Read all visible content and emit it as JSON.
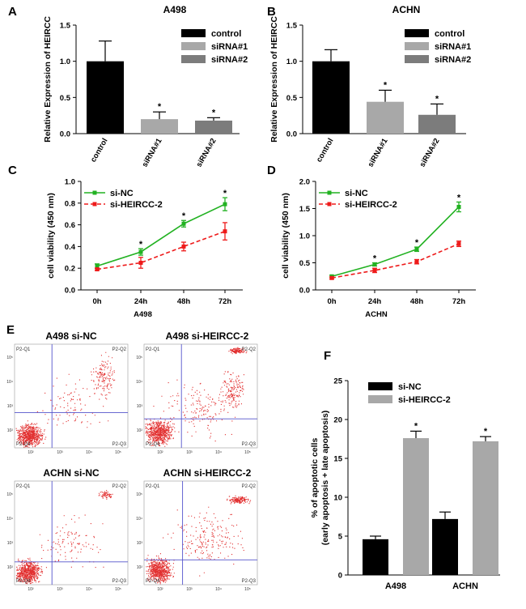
{
  "panel_labels": {
    "A": "A",
    "B": "B",
    "C": "C",
    "D": "D",
    "E": "E",
    "F": "F"
  },
  "colors": {
    "control": "#000000",
    "sirna1": "#a8a8a8",
    "sirna2": "#7c7c7c",
    "si_nc_line": "#22b222",
    "si_heircc_line": "#ee1b1b",
    "gate_line": "#5555cc",
    "dots": "#e23030",
    "bar_nc": "#000000",
    "bar_heircc": "#a8a8a8"
  },
  "chart_data": [
    {
      "id": "A",
      "type": "bar",
      "title": "A498",
      "ylabel": "Relative Expression of HEIRCC",
      "ylim": [
        0,
        1.5
      ],
      "yticks": [
        "0.0",
        "0.5",
        "1.0",
        "1.5"
      ],
      "categories": [
        "control",
        "siRNA#1",
        "siRNA#2"
      ],
      "values": [
        1.0,
        0.2,
        0.18
      ],
      "errors": [
        0.28,
        0.1,
        0.04
      ],
      "significance": [
        "",
        "*",
        "*"
      ],
      "legend": [
        "control",
        "siRNA#1",
        "siRNA#2"
      ]
    },
    {
      "id": "B",
      "type": "bar",
      "title": "ACHN",
      "ylabel": "Relative Expression of HEIRCC",
      "ylim": [
        0,
        1.5
      ],
      "yticks": [
        "0.0",
        "0.5",
        "1.0",
        "1.5"
      ],
      "categories": [
        "control",
        "siRNA#1",
        "siRNA#2"
      ],
      "values": [
        1.0,
        0.44,
        0.26
      ],
      "errors": [
        0.16,
        0.16,
        0.15
      ],
      "significance": [
        "",
        "*",
        "*"
      ],
      "legend": [
        "control",
        "siRNA#1",
        "siRNA#2"
      ]
    },
    {
      "id": "C",
      "type": "line",
      "xlabel": "A498",
      "ylabel": "cell viability (450 nm)",
      "ylim": [
        0,
        1.0
      ],
      "yticks": [
        "0.0",
        "0.2",
        "0.4",
        "0.6",
        "0.8",
        "1.0"
      ],
      "categories": [
        "0h",
        "24h",
        "48h",
        "72h"
      ],
      "series": [
        {
          "name": "si-NC",
          "values": [
            0.22,
            0.35,
            0.61,
            0.79
          ],
          "errors": [
            0.02,
            0.03,
            0.03,
            0.06
          ]
        },
        {
          "name": "si-HEIRCC-2",
          "values": [
            0.19,
            0.25,
            0.4,
            0.54
          ],
          "errors": [
            0.01,
            0.05,
            0.04,
            0.08
          ]
        }
      ],
      "significance": [
        "",
        "*",
        "*",
        "*"
      ]
    },
    {
      "id": "D",
      "type": "line",
      "xlabel": "ACHN",
      "ylabel": "cell viability (450 nm)",
      "ylim": [
        0,
        2.0
      ],
      "yticks": [
        "0.0",
        "0.5",
        "1.0",
        "1.5",
        "2.0"
      ],
      "categories": [
        "0h",
        "24h",
        "48h",
        "72h"
      ],
      "series": [
        {
          "name": "si-NC",
          "values": [
            0.25,
            0.47,
            0.75,
            1.53
          ],
          "errors": [
            0.02,
            0.03,
            0.04,
            0.09
          ]
        },
        {
          "name": "si-HEIRCC-2",
          "values": [
            0.22,
            0.36,
            0.52,
            0.85
          ],
          "errors": [
            0.02,
            0.04,
            0.04,
            0.05
          ]
        }
      ],
      "significance": [
        "",
        "*",
        "*",
        "*"
      ]
    },
    {
      "id": "F",
      "type": "bar",
      "ylabel": "% of apoptotic cells\n(early apoptosis + late apoptosis)",
      "ylim": [
        0,
        25
      ],
      "yticks": [
        "0",
        "5",
        "10",
        "15",
        "20",
        "25"
      ],
      "categories": [
        "A498",
        "ACHN"
      ],
      "series": [
        {
          "name": "si-NC",
          "values": [
            4.6,
            7.2
          ],
          "errors": [
            0.4,
            0.9
          ]
        },
        {
          "name": "si-HEIRCC-2",
          "values": [
            17.6,
            17.2
          ],
          "errors": [
            0.9,
            0.6
          ]
        }
      ],
      "significance": [
        "*",
        "*"
      ]
    }
  ],
  "flow": {
    "panels": [
      {
        "title": "A498  si-NC"
      },
      {
        "title": "A498  si-HEIRCC-2"
      },
      {
        "title": "ACHN  si-NC"
      },
      {
        "title": "ACHN  si-HEIRCC-2"
      }
    ],
    "gate_labels": [
      "P2-Q1",
      "P2-Q2",
      "P2-Q3",
      "P2-Q4"
    ],
    "decade_labels": [
      "10²",
      "10³",
      "10⁴",
      "10⁵"
    ]
  }
}
